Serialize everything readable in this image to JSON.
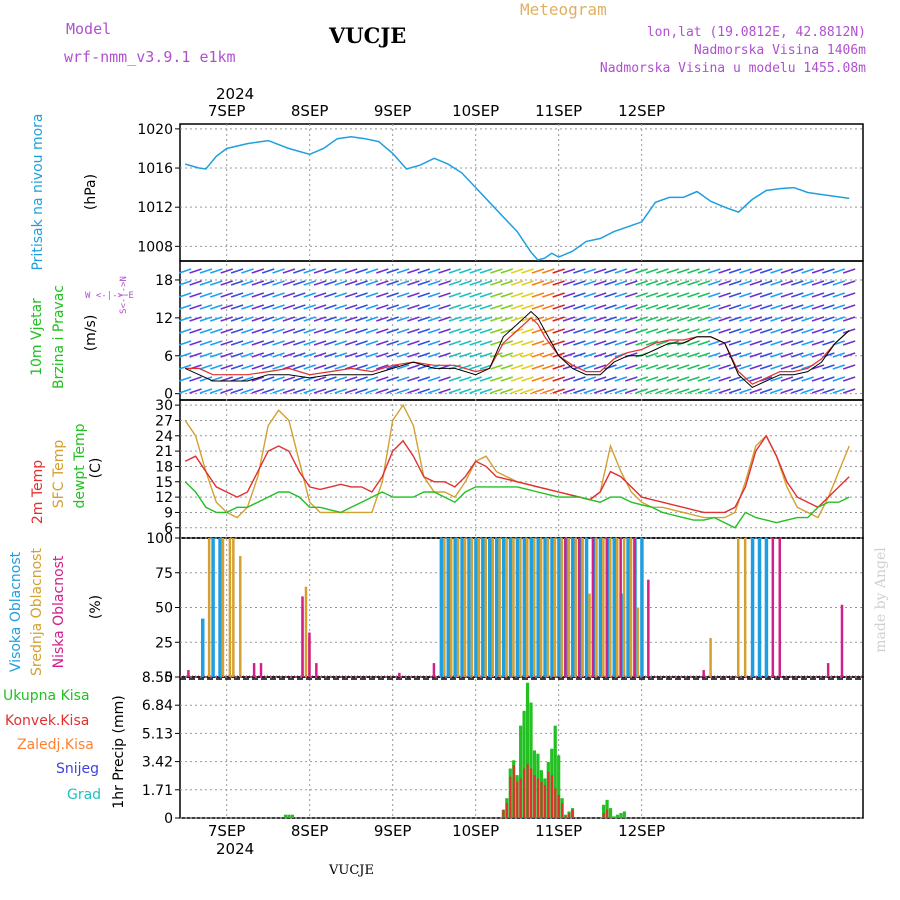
{
  "header": {
    "model_label": "Model",
    "model_name": "wrf-nmm_v3.9.1 e1km",
    "station": "VUCJE",
    "title": "Meteogram",
    "lonlat": "lon,lat (19.0812E, 42.8812N)",
    "altitude": "Nadmorska Visina 1406m",
    "model_altitude": "Nadmorska Visina u modelu 1455.08m",
    "credit": "made by Angel",
    "footer_station": "VUCJE"
  },
  "axis": {
    "year": "2024",
    "days": [
      "7SEP",
      "8SEP",
      "9SEP",
      "10SEP",
      "11SEP",
      "12SEP"
    ]
  },
  "colors": {
    "pressure": "#1f9fe0",
    "wind_speed": "#000000",
    "wind_gust": "#e03030",
    "t2m": "#e03030",
    "tsfc": "#d4a030",
    "dewpt": "#22c022",
    "high_cloud": "#1f9fe0",
    "mid_cloud": "#d4a030",
    "low_cloud": "#d0208a",
    "precip_total": "#22c022",
    "precip_conv": "#e03030"
  },
  "panels": {
    "pressure": {
      "label": "Pritisak na nivou mora",
      "unit": "(hPa)",
      "ticks": [
        "1008",
        "1012",
        "1016",
        "1020"
      ]
    },
    "wind": {
      "label1": "10m Vjetar",
      "label2": "Brzina i Pravac",
      "unit": "(m/s)",
      "compass": "W <-|-> E",
      "compass_ns": "S<-|->N",
      "ticks": [
        "0",
        "6",
        "12",
        "18"
      ]
    },
    "temp": {
      "label_2m": "2m Temp",
      "label_sfc": "SFC Temp",
      "label_dew": "dewpt Temp",
      "unit": "(C)",
      "ticks": [
        "6",
        "9",
        "12",
        "15",
        "18",
        "21",
        "24",
        "27",
        "30"
      ]
    },
    "cloud": {
      "label_high": "Visoka Oblacnost",
      "label_mid": "Srednja Oblacnost",
      "label_low": "Niska Oblacnost",
      "unit": "(%)",
      "ticks": [
        "0",
        "25",
        "50",
        "75",
        "100"
      ]
    },
    "precip": {
      "label_total": "Ukupna Kisa",
      "label_conv": "Konvek.Kisa",
      "label_frz": "Zaledj.Kisa",
      "label_snow": "Snijeg",
      "label_grad": "Grad",
      "unit": "1hr Precip (mm)",
      "ticks": [
        "0",
        "1.71",
        "3.42",
        "5.13",
        "6.84",
        "8.55"
      ]
    }
  },
  "chart_data": [
    {
      "type": "line",
      "title": "",
      "ylabel": "Pritisak na nivou mora (hPa)",
      "x_unit": "hours from 7SEP 00:00",
      "x": [
        -12,
        -8,
        -6,
        -3,
        0,
        6,
        12,
        18,
        24,
        28,
        32,
        36,
        40,
        44,
        48,
        52,
        56,
        60,
        64,
        68,
        72,
        76,
        80,
        84,
        88,
        90,
        92,
        94,
        96,
        100,
        104,
        108,
        112,
        116,
        120,
        124,
        128,
        132,
        134,
        136,
        140,
        144,
        148,
        152,
        156,
        160,
        164,
        168,
        172,
        178,
        180
      ],
      "ylim": [
        1006.5,
        1020.5
      ],
      "series": [
        {
          "values": [
            1016.4,
            1016.0,
            1015.9,
            1017.2,
            1018.0,
            1018.5,
            1018.8,
            1018.0,
            1017.4,
            1018.0,
            1019.0,
            1019.2,
            1019.0,
            1018.7,
            1017.5,
            1015.9,
            1016.3,
            1017.0,
            1016.4,
            1015.5,
            1014.0,
            1012.5,
            1011.0,
            1009.5,
            1007.4,
            1006.6,
            1006.8,
            1007.3,
            1006.9,
            1007.5,
            1008.5,
            1008.8,
            1009.5,
            1010.0,
            1010.5,
            1012.5,
            1013.0,
            1013.0,
            1013.3,
            1013.6,
            1012.6,
            1012.0,
            1011.5,
            1012.8,
            1013.7,
            1013.9,
            1014.0,
            1013.5,
            1013.3,
            1013.0,
            1012.9
          ]
        }
      ]
    },
    {
      "type": "line",
      "title": "",
      "ylabel": "10m Vjetar Brzina i Pravac (m/s)",
      "x_unit": "hours from 7SEP 00:00",
      "x": [
        -12,
        -8,
        -4,
        0,
        6,
        12,
        18,
        24,
        30,
        36,
        42,
        48,
        54,
        60,
        66,
        72,
        76,
        80,
        84,
        88,
        90,
        92,
        96,
        100,
        104,
        108,
        112,
        116,
        120,
        124,
        128,
        132,
        136,
        140,
        144,
        148,
        152,
        156,
        160,
        164,
        168,
        172,
        176,
        180
      ],
      "ylim": [
        -1,
        21
      ],
      "series": [
        {
          "name": "wind_speed",
          "values": [
            4,
            3,
            2,
            2,
            2,
            3,
            3,
            2.5,
            3,
            3,
            3,
            4,
            5,
            4,
            4,
            3,
            4,
            9,
            11,
            13,
            12,
            10,
            6,
            4,
            3,
            3,
            5,
            6,
            6,
            7,
            8,
            8,
            9,
            9,
            8,
            3,
            1,
            2,
            3,
            3,
            3.5,
            5,
            8,
            10
          ]
        },
        {
          "name": "wind_gust",
          "values": [
            4,
            4,
            3,
            3,
            3,
            3.5,
            4,
            3,
            3.5,
            4,
            3.5,
            4.5,
            5,
            4.5,
            4.5,
            3.5,
            4,
            8,
            10,
            12,
            11,
            9,
            6,
            4.5,
            3.5,
            3.5,
            5.5,
            6.5,
            7,
            8,
            8.5,
            8.5,
            9,
            9,
            8,
            3.5,
            1.5,
            2.5,
            3.5,
            3.5,
            4,
            5.5,
            8,
            10
          ]
        }
      ]
    },
    {
      "type": "line",
      "title": "",
      "ylabel": "Temp (C)",
      "x_unit": "hours from 7SEP 00:00",
      "x": [
        -12,
        -9,
        -6,
        -3,
        0,
        3,
        6,
        9,
        12,
        15,
        18,
        21,
        24,
        27,
        30,
        33,
        36,
        39,
        42,
        45,
        48,
        51,
        54,
        57,
        60,
        63,
        66,
        69,
        72,
        75,
        78,
        81,
        84,
        87,
        90,
        93,
        96,
        99,
        102,
        105,
        108,
        111,
        114,
        117,
        120,
        123,
        126,
        129,
        132,
        135,
        138,
        141,
        144,
        147,
        150,
        153,
        156,
        159,
        162,
        165,
        168,
        171,
        174,
        177,
        180
      ],
      "ylim": [
        4,
        31
      ],
      "series": [
        {
          "name": "2m Temp",
          "values": [
            19,
            20,
            17,
            14,
            13,
            12,
            13,
            17,
            21,
            22,
            21,
            17,
            14,
            13.5,
            14,
            14.5,
            14,
            14,
            13,
            16,
            21,
            23,
            20,
            16,
            15,
            15,
            14,
            16,
            19,
            18,
            16,
            15.5,
            15,
            14.5,
            14,
            13.5,
            13,
            12.5,
            12,
            11.5,
            13,
            17,
            16,
            14,
            12,
            11.5,
            11,
            10.5,
            10,
            9.5,
            9,
            9,
            9,
            10,
            14,
            21,
            24,
            20,
            15,
            12,
            11,
            10,
            12,
            14,
            16
          ]
        },
        {
          "name": "SFC Temp",
          "values": [
            27,
            24,
            17,
            11,
            9,
            8,
            10,
            16,
            26,
            29,
            27,
            19,
            11,
            9,
            9,
            9,
            9,
            9,
            9,
            15,
            27,
            30,
            26,
            16,
            13,
            13,
            12,
            15,
            19,
            20,
            17,
            16,
            15,
            14.5,
            14,
            13.5,
            13,
            12.5,
            12,
            11.5,
            13,
            22,
            17,
            13,
            11,
            10,
            10,
            9.5,
            9,
            8.5,
            8,
            8,
            8,
            9,
            15,
            22,
            24,
            20,
            14,
            10,
            9,
            8,
            12,
            17,
            22
          ]
        },
        {
          "name": "dewpt Temp",
          "values": [
            15,
            13,
            10,
            9,
            9,
            10,
            10,
            11,
            12,
            13,
            13,
            12,
            10,
            10,
            9.5,
            9,
            10,
            11,
            12,
            13,
            12,
            12,
            12,
            13,
            13,
            12,
            11,
            13,
            14,
            14,
            14,
            14,
            14,
            13.5,
            13,
            12.5,
            12,
            12,
            12,
            11.5,
            11,
            12,
            12,
            11,
            10.5,
            10,
            9,
            8.5,
            8,
            7.5,
            7.5,
            8,
            7,
            6,
            9,
            8,
            7.5,
            7,
            7.5,
            8,
            8,
            10,
            11,
            11,
            12
          ]
        }
      ]
    },
    {
      "type": "bar",
      "title": "",
      "ylabel": "Oblacnost (%)",
      "x_unit": "hours from 7SEP 00:00",
      "ylim": [
        0,
        100
      ],
      "series": [
        {
          "name": "Visoka Oblacnost",
          "x": [
            -7,
            -4,
            -2,
            62,
            64,
            66,
            68,
            70,
            72,
            74,
            76,
            78,
            80,
            82,
            84,
            86,
            88,
            90,
            92,
            94,
            96,
            98,
            100,
            102,
            104,
            106,
            108,
            110,
            112,
            114,
            116,
            118,
            120,
            152,
            154,
            156
          ],
          "values": [
            42,
            100,
            100,
            100,
            100,
            100,
            100,
            100,
            100,
            100,
            100,
            100,
            100,
            100,
            100,
            100,
            100,
            100,
            100,
            100,
            100,
            100,
            100,
            100,
            100,
            100,
            100,
            100,
            100,
            60,
            100,
            100,
            100,
            100,
            100,
            100
          ]
        },
        {
          "name": "Srednja Oblacnost",
          "x": [
            -5,
            -1,
            1,
            2,
            4,
            22,
            23,
            24,
            63,
            65,
            67,
            69,
            71,
            73,
            75,
            77,
            79,
            81,
            83,
            85,
            87,
            89,
            91,
            93,
            95,
            97,
            99,
            101,
            103,
            105,
            107,
            109,
            111,
            113,
            115,
            117,
            119,
            140,
            148,
            150
          ],
          "values": [
            100,
            100,
            100,
            100,
            87,
            50,
            65,
            28,
            100,
            100,
            100,
            100,
            100,
            100,
            100,
            100,
            100,
            100,
            100,
            100,
            100,
            100,
            100,
            100,
            100,
            100,
            100,
            100,
            100,
            60,
            100,
            100,
            100,
            100,
            100,
            100,
            50,
            28,
            100,
            100
          ]
        },
        {
          "name": "Niska Oblacnost",
          "x": [
            -11,
            8,
            10,
            22,
            24,
            26,
            50,
            60,
            98,
            102,
            106,
            110,
            114,
            118,
            122,
            138,
            158,
            160,
            174,
            178
          ],
          "values": [
            5,
            10,
            10,
            58,
            32,
            10,
            3,
            10,
            100,
            100,
            100,
            100,
            100,
            100,
            70,
            5,
            100,
            100,
            10,
            52
          ]
        }
      ]
    },
    {
      "type": "bar",
      "title": "",
      "ylabel": "1hr Precip (mm)",
      "x_unit": "hours from 7SEP 00:00",
      "ylim": [
        0,
        8.55
      ],
      "series": [
        {
          "name": "Ukupna Kisa",
          "x": [
            17,
            18,
            19,
            80,
            81,
            82,
            83,
            84,
            85,
            86,
            87,
            88,
            89,
            90,
            91,
            92,
            93,
            94,
            95,
            96,
            97,
            98,
            99,
            100,
            109,
            110,
            111,
            112,
            113,
            114,
            115
          ],
          "values": [
            0.2,
            0.2,
            0.2,
            0.5,
            1.2,
            3.0,
            3.5,
            2.6,
            5.6,
            6.5,
            8.2,
            7.0,
            4.1,
            3.9,
            2.9,
            2.4,
            3.4,
            4.2,
            5.6,
            3.8,
            1.2,
            0.2,
            0.4,
            0.6,
            0.8,
            1.1,
            0.6,
            0.1,
            0.2,
            0.3,
            0.4
          ]
        },
        {
          "name": "Konvek.Kisa",
          "x": [
            80,
            81,
            82,
            83,
            84,
            85,
            86,
            87,
            88,
            89,
            90,
            91,
            92,
            93,
            94,
            95,
            96,
            97,
            98,
            99,
            100,
            109,
            110
          ],
          "values": [
            0.5,
            0.9,
            2.5,
            3.2,
            2.2,
            2.4,
            3.0,
            3.3,
            3.0,
            2.6,
            2.4,
            2.2,
            2.0,
            2.8,
            2.6,
            1.8,
            1.4,
            0.9,
            0.1,
            0.3,
            0.5,
            0.3,
            0.5
          ]
        }
      ]
    }
  ]
}
